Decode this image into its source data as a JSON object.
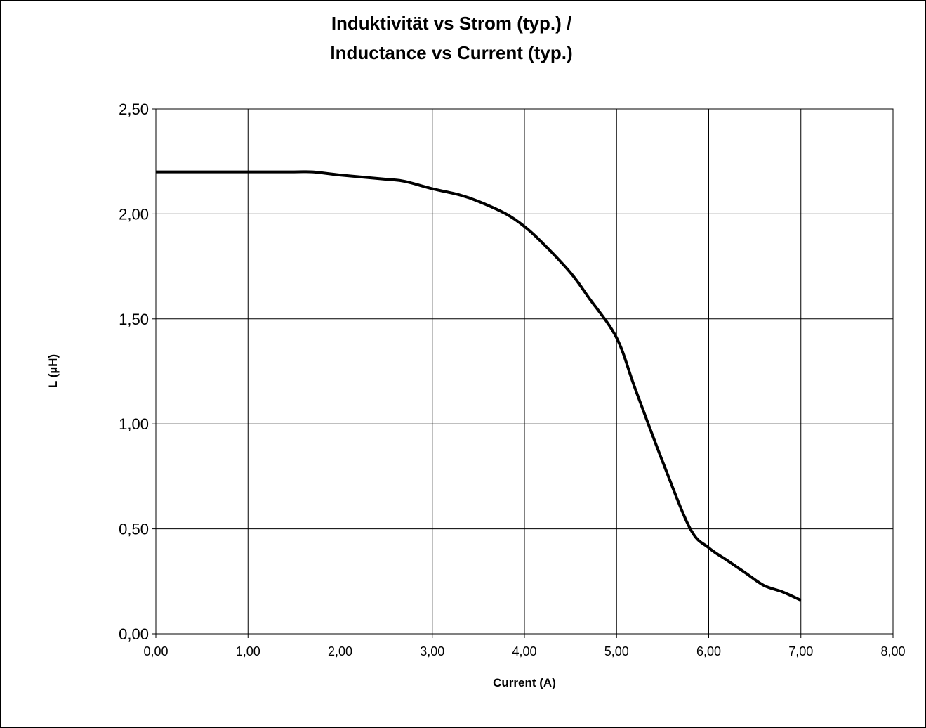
{
  "chart_data": {
    "type": "line",
    "title_line1": "Induktivität vs Strom (typ.) /",
    "title_line2": "Inductance vs Current (typ.)",
    "xlabel": "Current (A)",
    "ylabel": "L (µH)",
    "xlim": [
      0,
      8
    ],
    "ylim": [
      0,
      2.5
    ],
    "x_ticks": [
      "0,00",
      "1,00",
      "2,00",
      "3,00",
      "4,00",
      "5,00",
      "6,00",
      "7,00",
      "8,00"
    ],
    "y_ticks": [
      "0,00",
      "0,50",
      "1,00",
      "1,50",
      "2,00",
      "2,50"
    ],
    "grid": true,
    "line_color": "#000000",
    "series": [
      {
        "x": [
          0.0,
          0.5,
          1.0,
          1.5,
          1.7,
          2.0,
          2.5,
          2.7,
          3.0,
          3.3,
          3.5,
          3.8,
          4.0,
          4.2,
          4.5,
          4.7,
          5.0,
          5.2,
          5.5,
          5.8,
          6.0,
          6.2,
          6.4,
          6.6,
          6.8,
          7.0
        ],
        "y": [
          2.2,
          2.2,
          2.2,
          2.2,
          2.2,
          2.185,
          2.165,
          2.155,
          2.12,
          2.09,
          2.06,
          2.0,
          1.94,
          1.86,
          1.72,
          1.6,
          1.41,
          1.17,
          0.82,
          0.5,
          0.41,
          0.35,
          0.29,
          0.23,
          0.2,
          0.16
        ]
      }
    ]
  }
}
